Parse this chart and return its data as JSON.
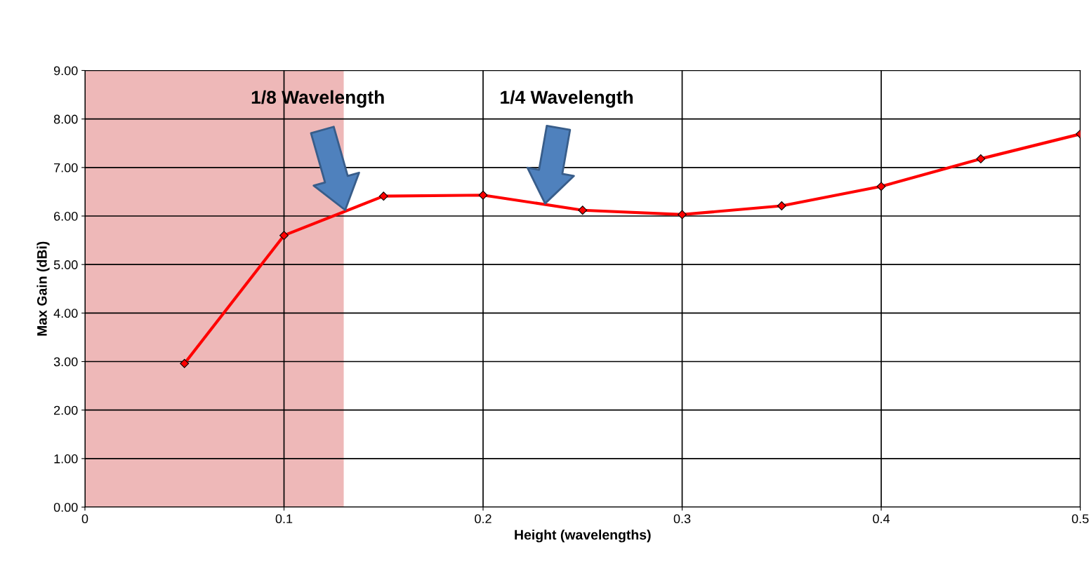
{
  "chart_data": {
    "type": "line",
    "xlabel": "Height (wavelengths)",
    "ylabel": "Max Gain (dBi)",
    "x": [
      0.05,
      0.1,
      0.15,
      0.2,
      0.25,
      0.3,
      0.35,
      0.4,
      0.45,
      0.5
    ],
    "series": [
      {
        "color": "#ff0000",
        "values": [
          2.96,
          5.6,
          6.41,
          6.43,
          6.12,
          6.03,
          6.21,
          6.61,
          7.18,
          7.69
        ]
      }
    ],
    "xlim": [
      0,
      0.5
    ],
    "xticks": [
      0,
      0.1,
      0.2,
      0.3,
      0.4,
      0.5
    ],
    "ylim": [
      0,
      9
    ],
    "yticks": [
      {
        "value": 0,
        "label": "0.00"
      },
      {
        "value": 1,
        "label": "1.00"
      },
      {
        "value": 2,
        "label": "2.00"
      },
      {
        "value": 3,
        "label": "3.00"
      },
      {
        "value": 4,
        "label": "4.00"
      },
      {
        "value": 5,
        "label": "5.00"
      },
      {
        "value": 6,
        "label": "6.00"
      },
      {
        "value": 7,
        "label": "7.00"
      },
      {
        "value": 8,
        "label": "8.00"
      },
      {
        "value": 9,
        "label": "9.00"
      }
    ],
    "bands": [
      {
        "axis": "x",
        "from": 0,
        "to": 0.13,
        "color": "#e8a0a0"
      }
    ],
    "annotations": [
      "1/8 Wavelength",
      "1/4 Wavelength"
    ],
    "grid": true,
    "marker": "diamond",
    "line_style": "solid"
  }
}
